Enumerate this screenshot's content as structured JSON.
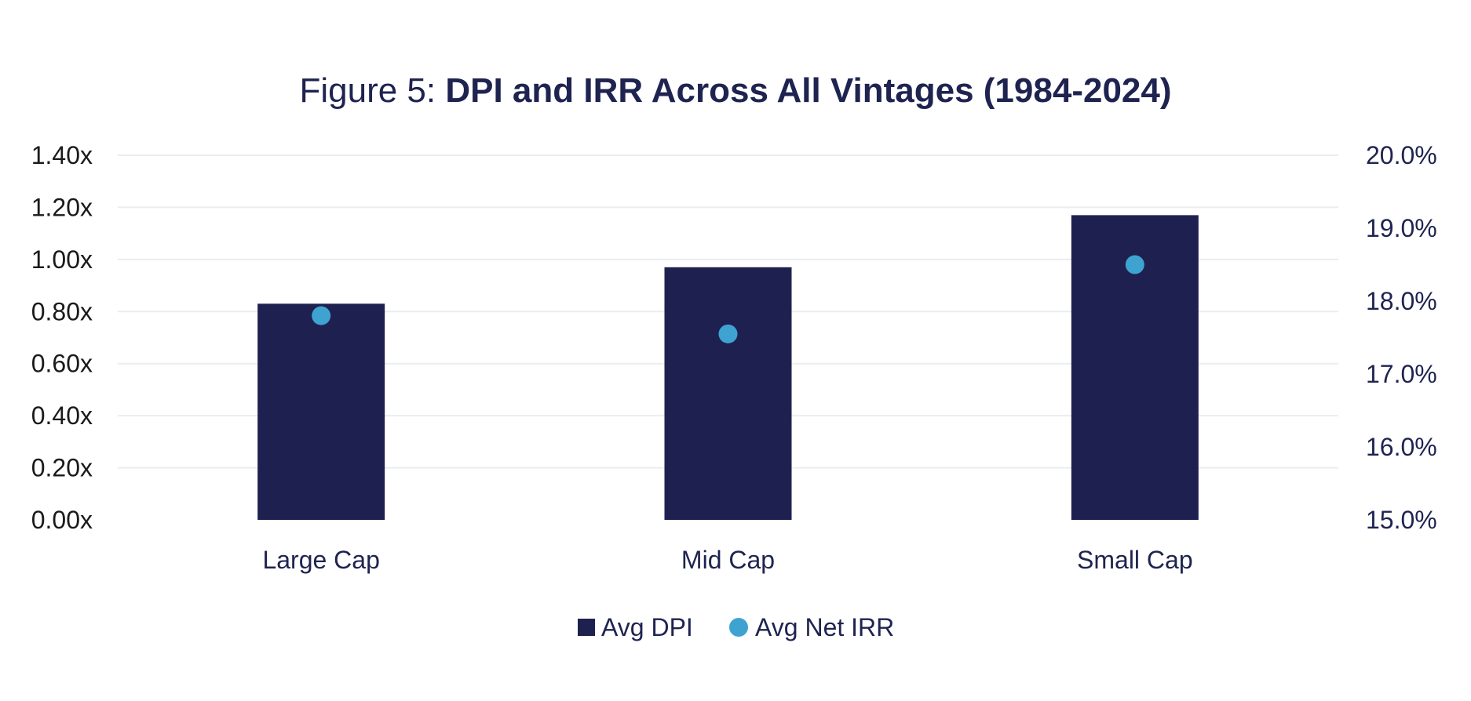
{
  "chart_data": {
    "type": "bar",
    "title_prefix": "Figure 5: ",
    "title_main": "DPI and IRR Across All Vintages (1984-2024)",
    "categories": [
      "Large Cap",
      "Mid Cap",
      "Small Cap"
    ],
    "series": [
      {
        "name": "Avg DPI",
        "kind": "bar",
        "axis": "left",
        "values": [
          0.83,
          0.97,
          1.17
        ]
      },
      {
        "name": "Avg Net IRR",
        "kind": "scatter",
        "axis": "right",
        "values": [
          17.8,
          17.55,
          18.5
        ]
      }
    ],
    "y_left": {
      "ylim": [
        0,
        1.4
      ],
      "ticks": [
        0,
        0.2,
        0.4,
        0.6,
        0.8,
        1.0,
        1.2,
        1.4
      ],
      "tick_labels": [
        "0.00x",
        "0.20x",
        "0.40x",
        "0.60x",
        "0.80x",
        "1.00x",
        "1.20x",
        "1.40x"
      ]
    },
    "y_right": {
      "ylim": [
        15,
        20
      ],
      "ticks": [
        15,
        16,
        17,
        18,
        19,
        20
      ],
      "tick_labels": [
        "15.0%",
        "16.0%",
        "17.0%",
        "18.0%",
        "19.0%",
        "20.0%"
      ]
    },
    "grid": true,
    "legend_position": "bottom-center",
    "colors": {
      "bar": "#1e2150",
      "dot": "#3fa3d1",
      "grid": "#e9edf0",
      "text": "#1e2350"
    }
  }
}
